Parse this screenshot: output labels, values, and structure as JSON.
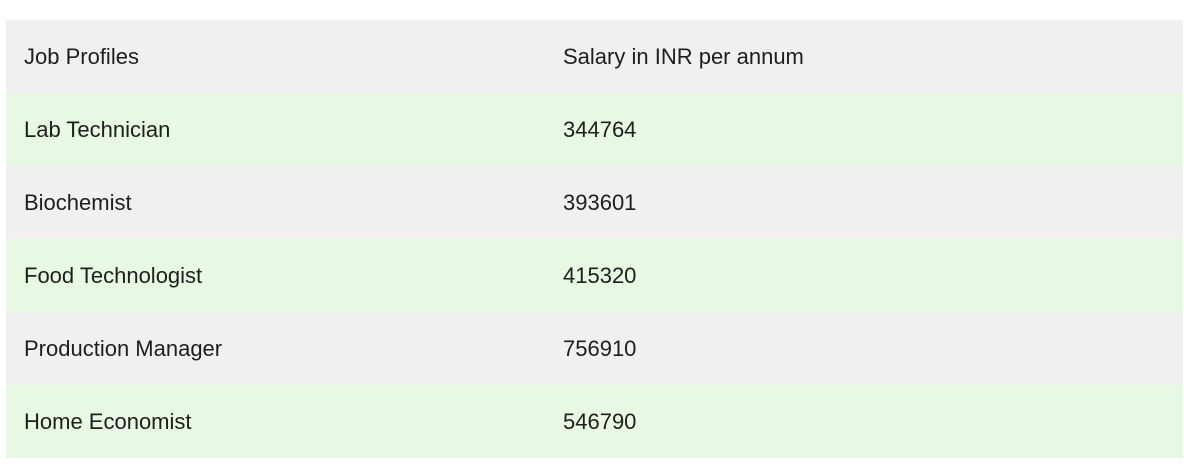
{
  "table": {
    "headers": [
      "Job Profiles",
      "Salary in INR per annum"
    ],
    "rows": [
      [
        "Lab Technician",
        "344764"
      ],
      [
        "Biochemist",
        "393601"
      ],
      [
        "Food Technologist",
        "415320"
      ],
      [
        "Production Manager",
        "756910"
      ],
      [
        "Home Economist",
        "546790"
      ]
    ]
  },
  "colors": {
    "header_background": "#f0f0f0",
    "row_even_background": "#e8f9e3",
    "row_odd_background": "#f0f0f0",
    "text": "#1e1e1e"
  }
}
